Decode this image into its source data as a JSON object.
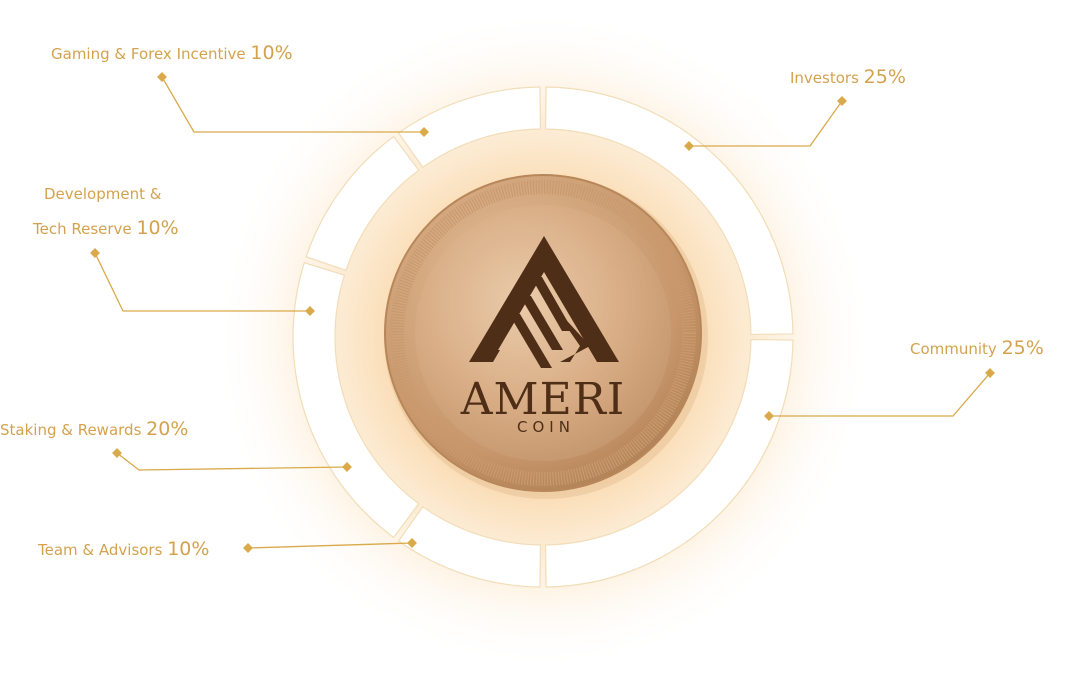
{
  "colors": {
    "accent": "#D9A94A",
    "label": "#D4A24E",
    "ring_fill": "#FFFFFF",
    "ring_outline": "#F2DDB8",
    "glow": "#F7C88A",
    "coin_light": "#E7C29E",
    "coin_mid": "#D3A57C",
    "coin_dark": "#B88759",
    "emblem": "#4E2E17"
  },
  "coin": {
    "logo_icon": "triangle-logo-icon",
    "name": "AMERI",
    "subtitle": "COIN"
  },
  "chart_data": {
    "type": "pie",
    "style": "donut",
    "categories": [
      "Investors",
      "Community",
      "Team & Advisors",
      "Staking & Rewards",
      "Development & Tech Reserve",
      "Gaming & Forex Incentive"
    ],
    "values": [
      25,
      25,
      10,
      20,
      10,
      10
    ],
    "title": "",
    "legend": "callout labels around the ring",
    "slices": [
      {
        "label_lines": [
          "Investors"
        ],
        "value_text": "25%",
        "value": 25
      },
      {
        "label_lines": [
          "Community"
        ],
        "value_text": "25%",
        "value": 25
      },
      {
        "label_lines": [
          "Team & Advisors"
        ],
        "value_text": "10%",
        "value": 10
      },
      {
        "label_lines": [
          "Staking & Rewards"
        ],
        "value_text": "20%",
        "value": 20
      },
      {
        "label_lines": [
          "Development &",
          "Tech Reserve"
        ],
        "value_text": "10%",
        "value": 10
      },
      {
        "label_lines": [
          "Gaming & Forex Incentive"
        ],
        "value_text": "10%",
        "value": 10
      }
    ]
  }
}
